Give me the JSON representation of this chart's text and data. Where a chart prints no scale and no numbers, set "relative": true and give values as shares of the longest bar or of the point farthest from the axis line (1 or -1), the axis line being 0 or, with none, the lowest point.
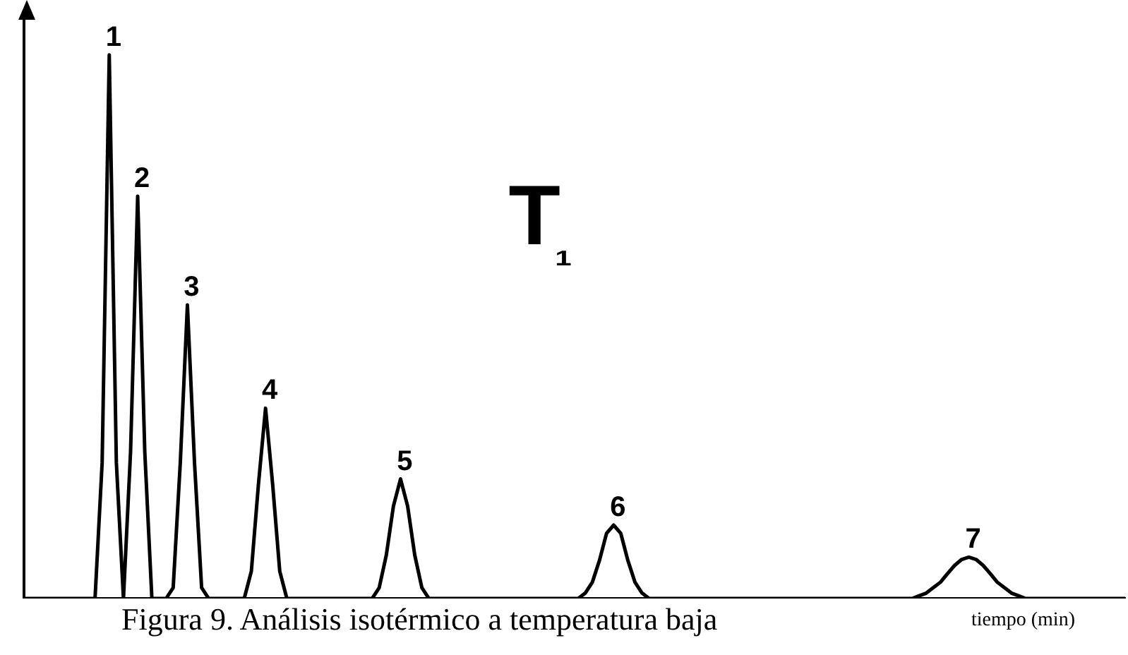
{
  "chart_data": {
    "type": "line",
    "relative": true,
    "title": "T₁",
    "xlabel": "tiempo (min)",
    "categories": [
      null,
      null,
      null,
      null,
      null,
      null,
      null,
      null,
      null,
      null,
      null,
      null,
      null,
      null,
      null,
      null,
      null,
      null,
      null,
      null,
      null,
      null,
      null,
      null,
      null,
      null,
      null,
      null,
      null,
      null,
      null,
      null,
      null,
      null,
      null,
      null,
      null,
      null,
      null,
      null,
      null,
      null,
      null,
      null,
      null,
      null,
      null,
      null,
      null,
      null,
      null,
      null,
      null,
      null,
      null,
      null,
      null,
      null,
      null,
      null,
      null,
      null,
      null,
      null,
      null,
      null,
      null,
      null,
      null,
      null,
      null,
      null,
      null,
      null,
      null,
      null,
      null,
      null,
      null,
      null,
      null,
      null,
      null,
      null,
      null,
      null,
      null,
      null,
      null,
      null,
      null,
      null,
      null,
      null,
      null,
      null,
      null,
      null,
      null,
      null,
      null,
      null,
      null,
      null,
      null,
      null,
      null,
      null,
      null,
      null,
      null,
      null,
      null,
      null,
      null,
      null,
      null,
      null,
      null,
      null,
      null,
      null,
      null,
      null,
      null,
      null,
      null,
      null,
      null,
      null,
      null,
      null,
      null,
      null,
      null,
      null,
      null,
      null,
      null,
      null,
      null,
      null,
      null,
      null,
      null,
      null,
      null,
      null,
      null,
      null,
      null,
      null,
      null,
      null,
      null,
      null
    ],
    "series": [
      {
        "color": "#000000",
        "values": [
          0,
          0,
          0,
          0,
          0,
          0,
          0,
          0,
          0,
          0,
          0,
          0.25,
          1,
          0.25,
          0,
          0.27,
          0.74,
          0.27,
          0,
          0,
          0,
          0.02,
          0.25,
          0.54,
          0.25,
          0.02,
          0,
          0,
          0,
          0,
          0,
          0,
          0.05,
          0.21,
          0.35,
          0.21,
          0.05,
          0,
          0,
          0,
          0,
          0,
          0,
          0,
          0,
          0,
          0,
          0,
          0,
          0,
          0.02,
          0.08,
          0.17,
          0.22,
          0.17,
          0.08,
          0.02,
          0,
          0,
          0,
          0,
          0,
          0,
          0,
          0,
          0,
          0,
          0,
          0,
          0,
          0,
          0,
          0,
          0,
          0,
          0,
          0,
          0,
          0,
          0.01,
          0.03,
          0.07,
          0.12,
          0.135,
          0.12,
          0.07,
          0.03,
          0.01,
          0,
          0,
          0,
          0,
          0,
          0,
          0,
          0,
          0,
          0,
          0,
          0,
          0,
          0,
          0,
          0,
          0,
          0,
          0,
          0,
          0,
          0,
          0,
          0,
          0,
          0,
          0,
          0,
          0,
          0,
          0,
          0,
          0,
          0,
          0,
          0,
          0,
          0,
          0.005,
          0.01,
          0.02,
          0.03,
          0.046,
          0.061,
          0.072,
          0.076,
          0.072,
          0.061,
          0.046,
          0.03,
          0.02,
          0.01,
          0.005,
          0,
          0,
          0,
          0,
          0,
          0,
          0,
          0,
          0,
          0,
          0,
          0,
          0,
          0,
          0
        ]
      }
    ],
    "annotations": [
      {
        "text": "1",
        "y": 1
      },
      {
        "text": "2",
        "y": 0.74
      },
      {
        "text": "3",
        "y": 0.54
      },
      {
        "text": "4",
        "y": 0.35
      },
      {
        "text": "5",
        "y": 0.22
      },
      {
        "text": "6",
        "y": 0.135
      },
      {
        "text": "7",
        "y": 0.076
      },
      "Figura 9. Análisis isotérmico a temperatura baja"
    ],
    "legend": false,
    "marker": "none",
    "line_style": "solid"
  }
}
